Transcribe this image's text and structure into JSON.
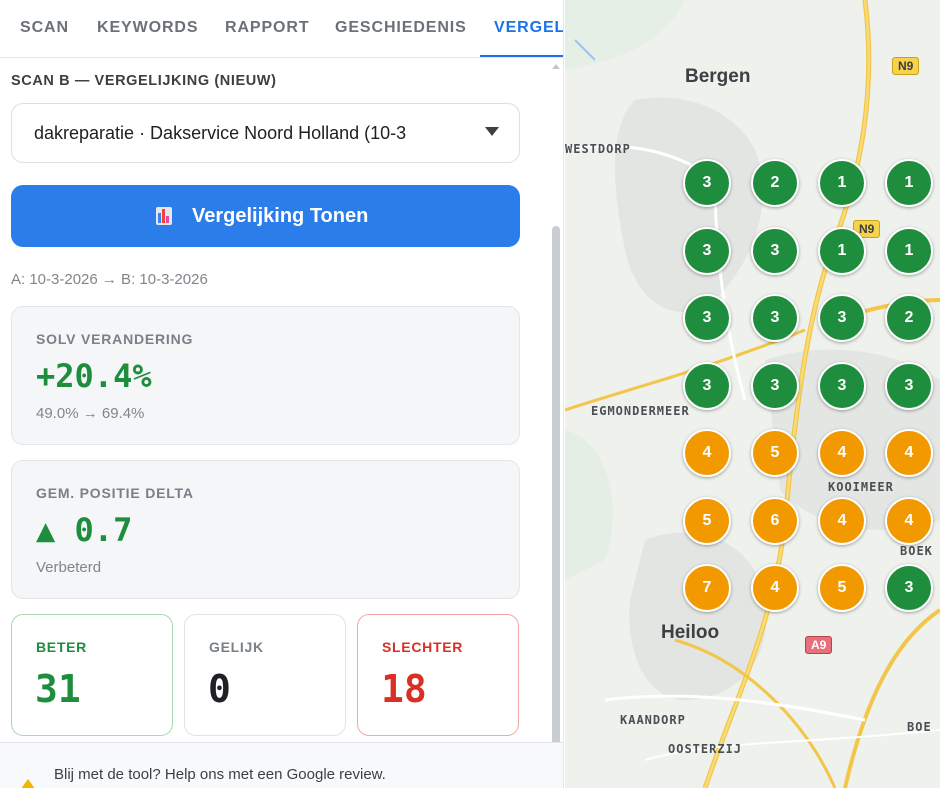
{
  "tabs": [
    {
      "label": "SCAN",
      "active": false
    },
    {
      "label": "KEYWORDS",
      "active": false
    },
    {
      "label": "RAPPORT",
      "active": false
    },
    {
      "label": "GESCHIEDENIS",
      "active": false
    },
    {
      "label": "VERGEL",
      "active": true
    }
  ],
  "scan_b": {
    "section_label": "SCAN B — VERGELIJKING (NIEUW)",
    "selected": "dakreparatie · Dakservice Noord Holland (10-3"
  },
  "compare_button": {
    "label": "Vergelijking Tonen",
    "icon": "bar-chart-icon"
  },
  "date_range": "A: 10-3-2026 → B: 10-3-2026",
  "solv": {
    "label": "SOLV VERANDERING",
    "value": "+20.4%",
    "sub": "49.0% → 69.4%"
  },
  "position": {
    "label": "GEM. POSITIE DELTA",
    "value": "▲ 0.7",
    "sub": "Verbeterd"
  },
  "stats": {
    "beter": {
      "label": "BETER",
      "value": "31"
    },
    "gelijk": {
      "label": "GELIJK",
      "value": "0"
    },
    "slechter": {
      "label": "SLECHTER",
      "value": "18"
    }
  },
  "footer": {
    "text": "Blij met de tool? Help ons met een Google review."
  },
  "colors": {
    "accent": "#2b7de9",
    "better": "#1e8e3e",
    "worse": "#d93025",
    "pin_good": "#1e8e3e",
    "pin_mid": "#f29900"
  },
  "map": {
    "places": [
      "Bergen",
      "WESTDORP",
      "EGMONDERMEER",
      "KOOIMEER",
      "BOEK",
      "Heiloo",
      "KAANDORP",
      "OOSTERZIJ",
      "BOE"
    ],
    "road_shields": [
      "N9",
      "N9",
      "A9"
    ],
    "grid": [
      [
        "3",
        "2",
        "1",
        "1"
      ],
      [
        "3",
        "3",
        "1",
        "1"
      ],
      [
        "3",
        "3",
        "3",
        "2"
      ],
      [
        "3",
        "3",
        "3",
        "3"
      ],
      [
        "4",
        "5",
        "4",
        "4"
      ],
      [
        "5",
        "6",
        "4",
        "4"
      ],
      [
        "7",
        "4",
        "5",
        "3"
      ]
    ],
    "grid_status": [
      [
        "good",
        "good",
        "good",
        "good"
      ],
      [
        "good",
        "good",
        "good",
        "good"
      ],
      [
        "good",
        "good",
        "good",
        "good"
      ],
      [
        "good",
        "good",
        "good",
        "good"
      ],
      [
        "mid",
        "mid",
        "mid",
        "mid"
      ],
      [
        "mid",
        "mid",
        "mid",
        "mid"
      ],
      [
        "mid",
        "mid",
        "mid",
        "good"
      ]
    ]
  }
}
